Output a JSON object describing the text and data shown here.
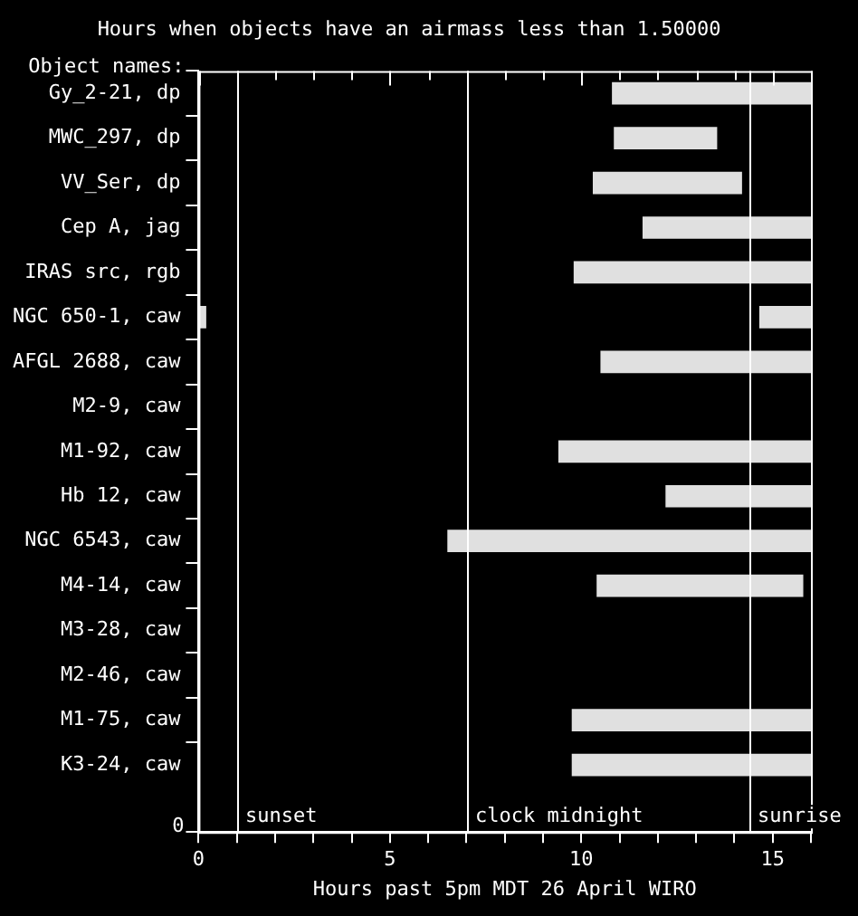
{
  "chart_data": {
    "type": "bar",
    "orientation": "horizontal",
    "title": "Hours when objects have an airmass less than 1.50000",
    "ylabel": "Object names:",
    "xlabel": "Hours past 5pm MDT 26 April WIRO",
    "categories": [
      "Gy_2-21, dp",
      "MWC_297, dp",
      "VV_Ser, dp",
      "Cep A, jag",
      "IRAS src, rgb",
      "NGC 650-1, caw",
      "AFGL 2688, caw",
      "M2-9, caw",
      "M1-92, caw",
      "Hb 12, caw",
      "NGC 6543, caw",
      "M4-14, caw",
      "M3-28, caw",
      "M2-46, caw",
      "M1-75, caw",
      "K3-24, caw"
    ],
    "series": [
      {
        "color": "#e0e0e0",
        "base": [
          10.8,
          10.85,
          10.3,
          11.6,
          9.8,
          14.65,
          10.5,
          null,
          9.4,
          12.2,
          6.5,
          10.4,
          null,
          null,
          9.75,
          9.75
        ],
        "values": [
          5.2,
          2.7,
          3.9,
          4.4,
          6.2,
          1.35,
          5.5,
          null,
          6.6,
          3.8,
          9.5,
          5.4,
          null,
          null,
          6.25,
          6.25
        ]
      },
      {
        "color": "#e0e0e0",
        "base": [
          null,
          null,
          null,
          null,
          null,
          0,
          null,
          null,
          null,
          null,
          null,
          null,
          null,
          null,
          null,
          null
        ],
        "values": [
          null,
          null,
          null,
          null,
          null,
          0.2,
          null,
          null,
          null,
          null,
          null,
          null,
          null,
          null,
          null,
          null
        ]
      }
    ],
    "xlim": [
      0,
      16
    ],
    "xticks": [
      0,
      {
        "value": 1,
        "label": null
      },
      {
        "value": 2,
        "label": null
      },
      {
        "value": 3,
        "label": null
      },
      {
        "value": 4,
        "label": null
      },
      5,
      {
        "value": 6,
        "label": null
      },
      {
        "value": 7,
        "label": null
      },
      {
        "value": 8,
        "label": null
      },
      {
        "value": 9,
        "label": null
      },
      10,
      {
        "value": 11,
        "label": null
      },
      {
        "value": 12,
        "label": null
      },
      {
        "value": 13,
        "label": null
      },
      {
        "value": 14,
        "label": null
      },
      15,
      {
        "value": 16,
        "label": null
      }
    ],
    "ref_lines": [
      {
        "axis": "x",
        "value": 1,
        "label": "sunset",
        "color": "#ffffff"
      },
      {
        "axis": "x",
        "value": 7,
        "label": "clock midnight",
        "color": "#ffffff"
      },
      {
        "axis": "x",
        "value": 14.4,
        "label": "sunrise",
        "color": "#ffffff"
      }
    ],
    "annotations": [
      "0"
    ],
    "grid": false,
    "legend": false
  }
}
